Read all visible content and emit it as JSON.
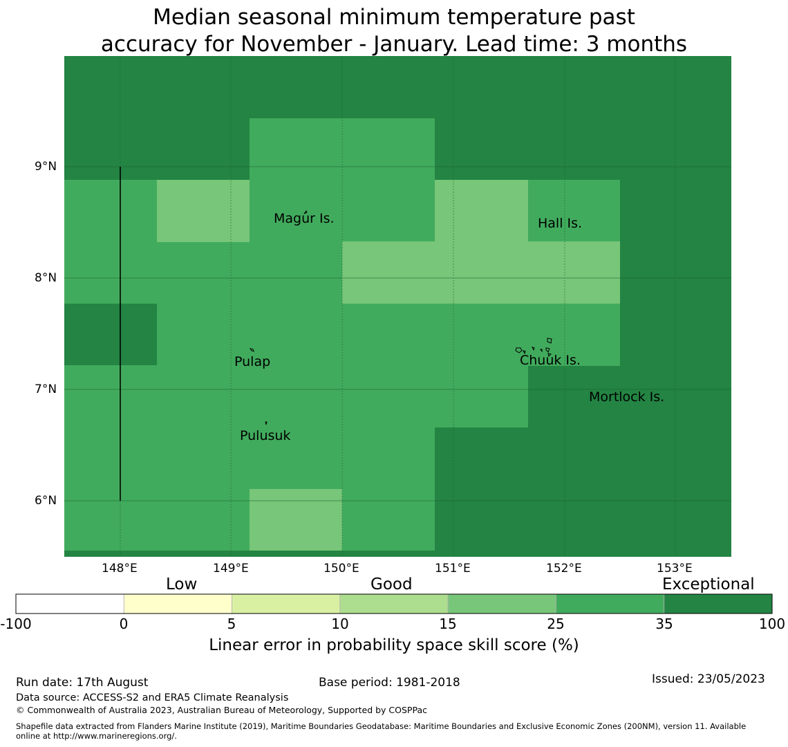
{
  "title": {
    "line1": "Median seasonal minimum temperature past",
    "line2": "accuracy for November - January. Lead time: 3 months"
  },
  "map": {
    "lat_labels": [
      "9°N",
      "8°N",
      "7°N",
      "6°N"
    ],
    "lon_labels": [
      "148°E",
      "149°E",
      "150°E",
      "151°E",
      "152°E",
      "153°E"
    ],
    "places": [
      {
        "name": "Magur Is."
      },
      {
        "name": "Hall Is."
      },
      {
        "name": "Pulap"
      },
      {
        "name": "Chuuk Is."
      },
      {
        "name": "Mortlock Is."
      },
      {
        "name": "Pulusuk"
      }
    ],
    "colors": {
      "band_35_100": "#238443",
      "band_25_35": "#41ab5d",
      "band_15_25": "#78c679"
    }
  },
  "colorbar": {
    "category_labels": [
      "Low",
      "Good",
      "Exceptional"
    ],
    "ticks": [
      "-100",
      "0",
      "5",
      "10",
      "15",
      "25",
      "35",
      "100"
    ],
    "colors": [
      "#ffffff",
      "#ffffcc",
      "#d9f0a3",
      "#addd8e",
      "#78c679",
      "#41ab5d",
      "#238443"
    ],
    "label": "Linear error in probability space skill score (%)"
  },
  "footer": {
    "run_date": "Run date: 17th August",
    "base_period": "Base period: 1981-2018",
    "issued": "Issued: 23/05/2023",
    "data_source": "Data source: ACCESS-S2 and ERA5 Climate Reanalysis",
    "copyright": "© Commonwealth of Australia 2023, Australian Bureau of Meteorology, Supported by COSPPac",
    "shapefile_line1": "Shapefile data extracted from Flanders Marine Institute (2019), Maritime Boundaries Geodatabase: Maritime Boundaries and Exclusive Economic Zones (200NM), version 11. Available",
    "shapefile_line2": "online at http://www.marineregions.org/."
  }
}
